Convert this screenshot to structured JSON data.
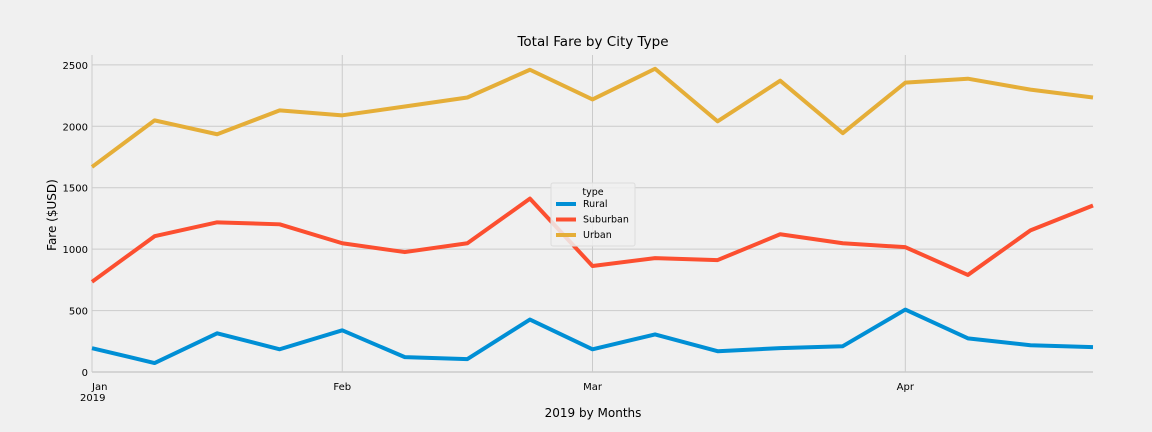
{
  "chart_data": {
    "type": "line",
    "title": "Total Fare by City Type",
    "xlabel": "2019 by Months",
    "ylabel": "Fare ($USD)",
    "ylim": [
      0,
      2580
    ],
    "yticks": [
      0,
      500,
      1000,
      1500,
      2000,
      2500
    ],
    "xticks": [
      {
        "index": 0,
        "label": "Jan",
        "sublabel": "2019"
      },
      {
        "index": 4,
        "label": "Feb"
      },
      {
        "index": 8,
        "label": "Mar"
      },
      {
        "index": 13,
        "label": "Apr"
      }
    ],
    "x_count": 17,
    "grid": true,
    "legend": {
      "title": "type",
      "placement": "center"
    },
    "series": [
      {
        "name": "Rural",
        "color": "#008fd5",
        "values": [
          194,
          73,
          315,
          185,
          339,
          121,
          105,
          427,
          185,
          306,
          169,
          194,
          210,
          508,
          274,
          218,
          202
        ]
      },
      {
        "name": "Suburban",
        "color": "#fc4f30",
        "values": [
          734,
          1105,
          1218,
          1202,
          1048,
          976,
          1048,
          1411,
          863,
          927,
          911,
          1121,
          1048,
          1016,
          790,
          1153,
          1355
        ]
      },
      {
        "name": "Urban",
        "color": "#e5ae38",
        "values": [
          1669,
          2048,
          1935,
          2129,
          2089,
          2161,
          2234,
          2460,
          2218,
          2468,
          2040,
          2371,
          1944,
          2355,
          2387,
          2298,
          2234
        ]
      }
    ]
  }
}
